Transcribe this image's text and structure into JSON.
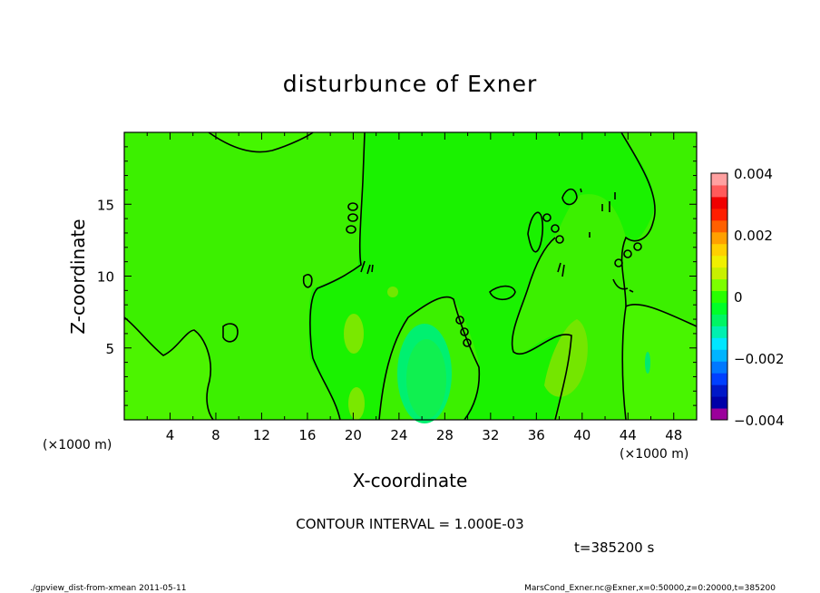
{
  "chart_data": {
    "type": "heatmap",
    "title": "disturbunce of Exner",
    "xlabel": "X-coordinate",
    "ylabel": "Z-coordinate",
    "x_unit": "(×1000 m)",
    "x_tick_labels": [
      "4",
      "8",
      "12",
      "16",
      "20",
      "24",
      "28",
      "32",
      "36",
      "40",
      "44",
      "48"
    ],
    "y_tick_labels": [
      "5",
      "10",
      "15"
    ],
    "xlim": [
      0,
      50
    ],
    "ylim": [
      0,
      20
    ],
    "colorbar": {
      "tick_labels": [
        "0.004",
        "0.002",
        "0",
        "−0.002",
        "−0.004"
      ],
      "min": -0.004,
      "max": 0.004,
      "colors": [
        "#9b009b",
        "#0000a8",
        "#0018c8",
        "#0040ff",
        "#0078ff",
        "#00b4ff",
        "#00e6ff",
        "#00f0b0",
        "#00f564",
        "#00ff28",
        "#28ff00",
        "#7cff00",
        "#c8f000",
        "#f0f000",
        "#ffd000",
        "#ffa000",
        "#ff6000",
        "#ff1e00",
        "#f00000",
        "#ff5a5a",
        "#ffa0a0"
      ]
    },
    "contour_interval_text": "CONTOUR INTERVAL = 1.000E-03",
    "time_text": "t=385200 s",
    "footer_left": "./gpview_dist-from-xmean   2011-05-11",
    "footer_right": "MarsCond_Exner.nc@Exner,x=0:50000,z=0:20000,t=385200"
  }
}
